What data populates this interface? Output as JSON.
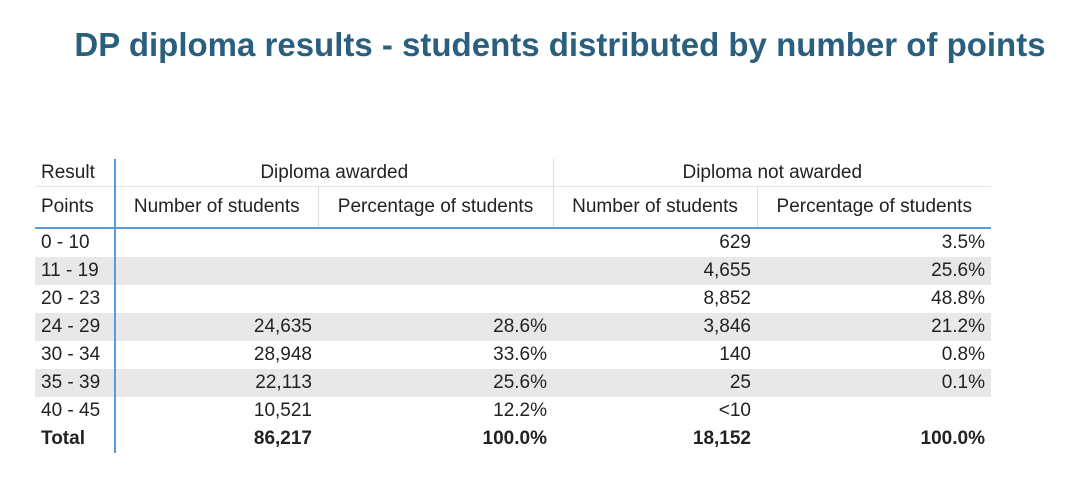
{
  "title": "DP diploma results - students distributed by number of points",
  "table": {
    "group_header": [
      "Result",
      "Diploma awarded",
      "Diploma not awarded"
    ],
    "columns": [
      "Points",
      "Number of students",
      "Percentage of students",
      "Number of students",
      "Percentage of students"
    ],
    "rows": [
      [
        "0 - 10",
        null,
        null,
        "629",
        "3.5%"
      ],
      [
        "11 - 19",
        null,
        null,
        "4,655",
        "25.6%"
      ],
      [
        "20 - 23",
        null,
        null,
        "8,852",
        "48.8%"
      ],
      [
        "24 - 29",
        "24,635",
        "28.6%",
        "3,846",
        "21.2%"
      ],
      [
        "30 - 34",
        "28,948",
        "33.6%",
        "140",
        "0.8%"
      ],
      [
        "35 - 39",
        "22,113",
        "25.6%",
        "25",
        "0.1%"
      ],
      [
        "40 - 45",
        "10,521",
        "12.2%",
        "<10",
        null
      ]
    ],
    "total": [
      "Total",
      "86,217",
      "100.0%",
      "18,152",
      "100.0%"
    ]
  }
}
